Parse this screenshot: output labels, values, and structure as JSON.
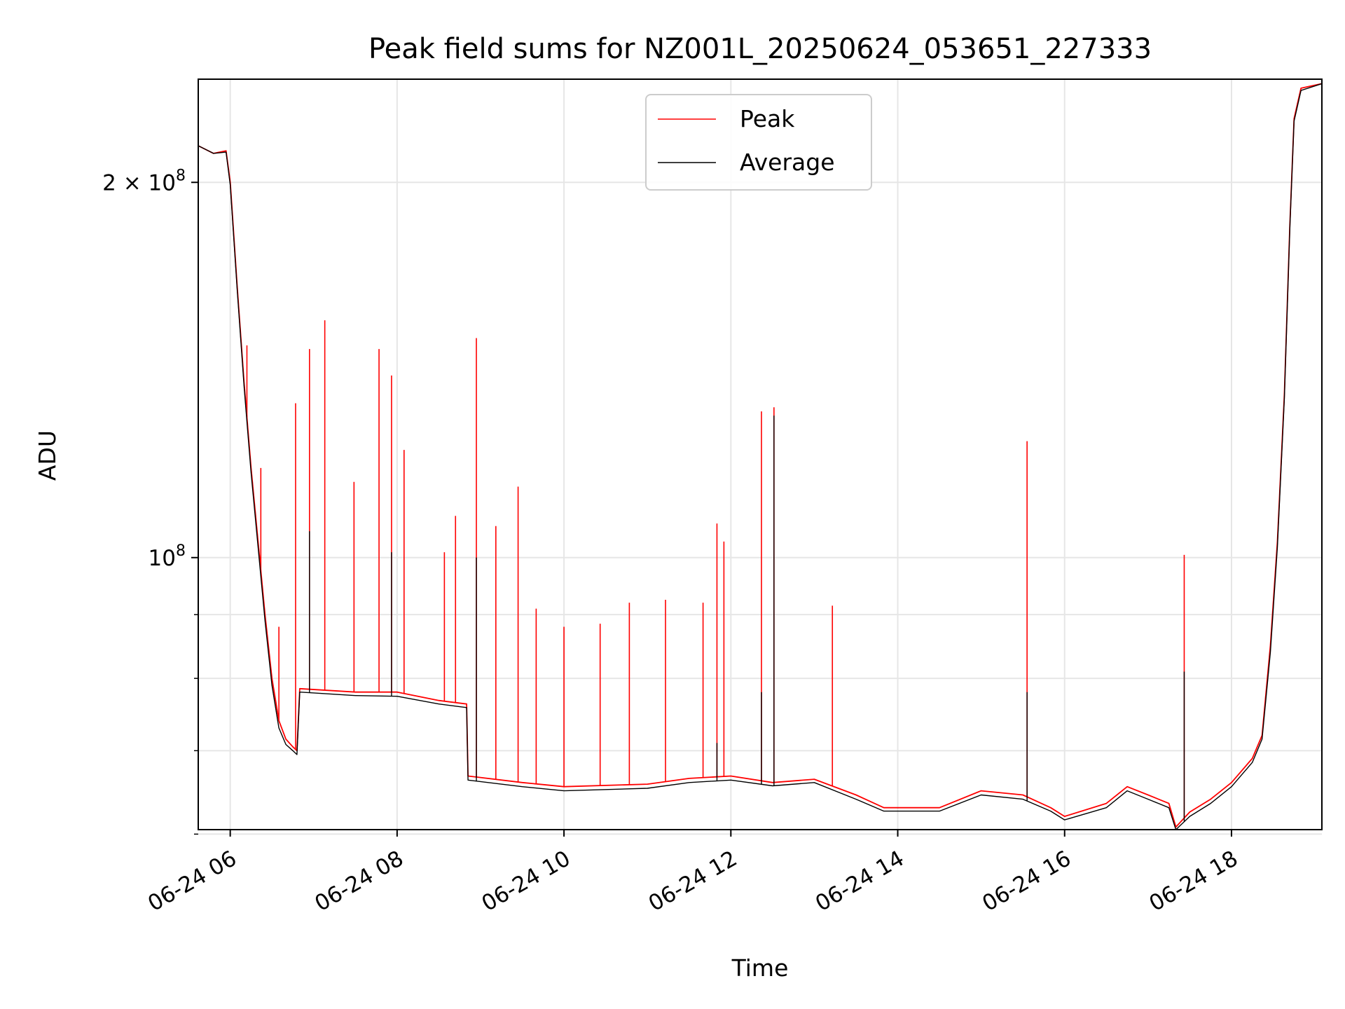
{
  "chart_data": {
    "type": "line",
    "title": "Peak field sums for NZ001L_20250624_053651_227333",
    "xlabel": "Time",
    "ylabel": "ADU",
    "x_scale": "time",
    "y_scale": "log",
    "xlim": [
      "2025-06-24 05:37",
      "2025-06-24 19:05"
    ],
    "ylim": [
      60500000,
      242000000
    ],
    "x_ticks": [
      {
        "value": "2025-06-24 06:00",
        "label": "06-24 06"
      },
      {
        "value": "2025-06-24 08:00",
        "label": "06-24 08"
      },
      {
        "value": "2025-06-24 10:00",
        "label": "06-24 10"
      },
      {
        "value": "2025-06-24 12:00",
        "label": "06-24 12"
      },
      {
        "value": "2025-06-24 14:00",
        "label": "06-24 14"
      },
      {
        "value": "2025-06-24 16:00",
        "label": "06-24 16"
      },
      {
        "value": "2025-06-24 18:00",
        "label": "06-24 18"
      }
    ],
    "y_major_ticks": [
      {
        "value": 100000000,
        "base": "10",
        "exp": "8"
      },
      {
        "value": 200000000,
        "base": "2 × 10",
        "exp": "8"
      }
    ],
    "y_minor_ticks": [
      60000000,
      70000000,
      80000000,
      90000000
    ],
    "grid": true,
    "legend_position": "upper-center",
    "series": [
      {
        "name": "Peak",
        "color": "#ff0000",
        "points": [
          [
            "2025-06-24 05:37",
            214000000
          ],
          [
            "2025-06-24 05:48",
            211000000
          ],
          [
            "2025-06-24 05:57",
            212000000
          ],
          [
            "2025-06-24 06:00",
            200000000
          ],
          [
            "2025-06-24 06:05",
            165000000
          ],
          [
            "2025-06-24 06:10",
            138000000
          ],
          [
            "2025-06-24 06:15",
            118000000
          ],
          [
            "2025-06-24 06:20",
            103000000
          ],
          [
            "2025-06-24 06:25",
            90000000
          ],
          [
            "2025-06-24 06:30",
            80000000
          ],
          [
            "2025-06-24 06:35",
            74000000
          ],
          [
            "2025-06-24 06:40",
            71500000
          ],
          [
            "2025-06-24 06:45",
            70500000
          ],
          [
            "2025-06-24 06:48",
            70000000
          ],
          [
            "2025-06-24 06:50",
            78500000
          ],
          [
            "2025-06-24 07:30",
            78000000
          ],
          [
            "2025-06-24 08:00",
            78000000
          ],
          [
            "2025-06-24 08:30",
            76800000
          ],
          [
            "2025-06-24 08:50",
            76300000
          ],
          [
            "2025-06-24 08:51",
            66800000
          ],
          [
            "2025-06-24 09:30",
            66000000
          ],
          [
            "2025-06-24 10:00",
            65500000
          ],
          [
            "2025-06-24 11:00",
            65800000
          ],
          [
            "2025-06-24 11:30",
            66500000
          ],
          [
            "2025-06-24 12:00",
            66800000
          ],
          [
            "2025-06-24 12:30",
            66000000
          ],
          [
            "2025-06-24 13:00",
            66400000
          ],
          [
            "2025-06-24 13:30",
            64500000
          ],
          [
            "2025-06-24 13:50",
            63000000
          ],
          [
            "2025-06-24 14:30",
            63000000
          ],
          [
            "2025-06-24 15:00",
            65000000
          ],
          [
            "2025-06-24 15:30",
            64500000
          ],
          [
            "2025-06-24 15:50",
            63000000
          ],
          [
            "2025-06-24 16:00",
            62000000
          ],
          [
            "2025-06-24 16:30",
            63500000
          ],
          [
            "2025-06-24 16:45",
            65500000
          ],
          [
            "2025-06-24 17:00",
            64500000
          ],
          [
            "2025-06-24 17:15",
            63500000
          ],
          [
            "2025-06-24 17:20",
            60800000
          ],
          [
            "2025-06-24 17:30",
            62500000
          ],
          [
            "2025-06-24 17:45",
            64000000
          ],
          [
            "2025-06-24 18:00",
            66000000
          ],
          [
            "2025-06-24 18:15",
            69000000
          ],
          [
            "2025-06-24 18:22",
            72000000
          ],
          [
            "2025-06-24 18:28",
            85000000
          ],
          [
            "2025-06-24 18:33",
            103000000
          ],
          [
            "2025-06-24 18:38",
            135000000
          ],
          [
            "2025-06-24 18:42",
            185000000
          ],
          [
            "2025-06-24 18:45",
            225000000
          ],
          [
            "2025-06-24 18:50",
            238000000
          ],
          [
            "2025-06-24 19:05",
            240000000
          ]
        ],
        "spikes": [
          [
            "2025-06-24 06:12",
            148000000
          ],
          [
            "2025-06-24 06:22",
            118000000
          ],
          [
            "2025-06-24 06:35",
            88000000
          ],
          [
            "2025-06-24 06:47",
            133000000
          ],
          [
            "2025-06-24 06:57",
            147000000
          ],
          [
            "2025-06-24 07:08",
            155000000
          ],
          [
            "2025-06-24 07:29",
            115000000
          ],
          [
            "2025-06-24 07:47",
            147000000
          ],
          [
            "2025-06-24 07:56",
            140000000
          ],
          [
            "2025-06-24 08:05",
            122000000
          ],
          [
            "2025-06-24 08:34",
            101000000
          ],
          [
            "2025-06-24 08:42",
            108000000
          ],
          [
            "2025-06-24 08:57",
            150000000
          ],
          [
            "2025-06-24 09:11",
            106000000
          ],
          [
            "2025-06-24 09:27",
            114000000
          ],
          [
            "2025-06-24 09:40",
            91000000
          ],
          [
            "2025-06-24 10:00",
            88000000
          ],
          [
            "2025-06-24 10:26",
            88500000
          ],
          [
            "2025-06-24 10:47",
            92000000
          ],
          [
            "2025-06-24 11:13",
            92500000
          ],
          [
            "2025-06-24 11:40",
            92000000
          ],
          [
            "2025-06-24 11:50",
            106500000
          ],
          [
            "2025-06-24 11:55",
            103000000
          ],
          [
            "2025-06-24 12:22",
            131000000
          ],
          [
            "2025-06-24 12:31",
            132000000
          ],
          [
            "2025-06-24 13:13",
            91500000
          ],
          [
            "2025-06-24 15:33",
            124000000
          ],
          [
            "2025-06-24 17:26",
            100500000
          ]
        ]
      },
      {
        "name": "Average",
        "color": "#000000",
        "points": [
          [
            "2025-06-24 05:37",
            214000000
          ],
          [
            "2025-06-24 05:48",
            211000000
          ],
          [
            "2025-06-24 05:57",
            211500000
          ],
          [
            "2025-06-24 06:00",
            199000000
          ],
          [
            "2025-06-24 06:05",
            164000000
          ],
          [
            "2025-06-24 06:10",
            137000000
          ],
          [
            "2025-06-24 06:15",
            117000000
          ],
          [
            "2025-06-24 06:20",
            102000000
          ],
          [
            "2025-06-24 06:25",
            89000000
          ],
          [
            "2025-06-24 06:30",
            79000000
          ],
          [
            "2025-06-24 06:35",
            73000000
          ],
          [
            "2025-06-24 06:40",
            70800000
          ],
          [
            "2025-06-24 06:45",
            70000000
          ],
          [
            "2025-06-24 06:48",
            69500000
          ],
          [
            "2025-06-24 06:50",
            78000000
          ],
          [
            "2025-06-24 07:30",
            77500000
          ],
          [
            "2025-06-24 08:00",
            77400000
          ],
          [
            "2025-06-24 08:30",
            76300000
          ],
          [
            "2025-06-24 08:50",
            75800000
          ],
          [
            "2025-06-24 08:51",
            66300000
          ],
          [
            "2025-06-24 09:30",
            65500000
          ],
          [
            "2025-06-24 10:00",
            65000000
          ],
          [
            "2025-06-24 11:00",
            65300000
          ],
          [
            "2025-06-24 11:30",
            66000000
          ],
          [
            "2025-06-24 12:00",
            66300000
          ],
          [
            "2025-06-24 12:30",
            65600000
          ],
          [
            "2025-06-24 13:00",
            66000000
          ],
          [
            "2025-06-24 13:30",
            64000000
          ],
          [
            "2025-06-24 13:50",
            62600000
          ],
          [
            "2025-06-24 14:30",
            62600000
          ],
          [
            "2025-06-24 15:00",
            64500000
          ],
          [
            "2025-06-24 15:30",
            64000000
          ],
          [
            "2025-06-24 15:50",
            62600000
          ],
          [
            "2025-06-24 16:00",
            61600000
          ],
          [
            "2025-06-24 16:30",
            63000000
          ],
          [
            "2025-06-24 16:45",
            65000000
          ],
          [
            "2025-06-24 17:00",
            64000000
          ],
          [
            "2025-06-24 17:15",
            63000000
          ],
          [
            "2025-06-24 17:20",
            60500000
          ],
          [
            "2025-06-24 17:30",
            62000000
          ],
          [
            "2025-06-24 17:45",
            63500000
          ],
          [
            "2025-06-24 18:00",
            65500000
          ],
          [
            "2025-06-24 18:15",
            68500000
          ],
          [
            "2025-06-24 18:22",
            71500000
          ],
          [
            "2025-06-24 18:28",
            84000000
          ],
          [
            "2025-06-24 18:33",
            102000000
          ],
          [
            "2025-06-24 18:38",
            134000000
          ],
          [
            "2025-06-24 18:42",
            184000000
          ],
          [
            "2025-06-24 18:45",
            224000000
          ],
          [
            "2025-06-24 18:50",
            237000000
          ],
          [
            "2025-06-24 19:05",
            240000000
          ]
        ],
        "spikes": [
          [
            "2025-06-24 06:57",
            105000000
          ],
          [
            "2025-06-24 07:56",
            101000000
          ],
          [
            "2025-06-24 08:57",
            100000000
          ],
          [
            "2025-06-24 11:50",
            71000000
          ],
          [
            "2025-06-24 12:22",
            78000000
          ],
          [
            "2025-06-24 12:31",
            130000000
          ],
          [
            "2025-06-24 15:33",
            78000000
          ],
          [
            "2025-06-24 17:26",
            81000000
          ]
        ]
      }
    ]
  }
}
